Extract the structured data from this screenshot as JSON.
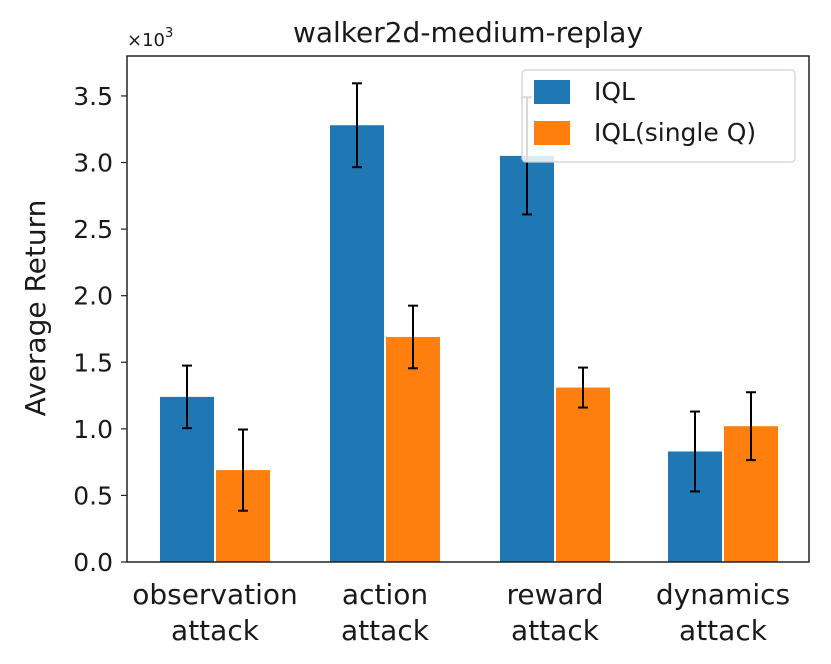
{
  "chart_data": {
    "type": "bar",
    "title": "walker2d-medium-replay",
    "xlabel": "",
    "ylabel": "Average Return",
    "y_multiplier": "×10",
    "y_multiplier_exp": "3",
    "ylim": [
      0,
      3.8
    ],
    "yticks": [
      0.0,
      0.5,
      1.0,
      1.5,
      2.0,
      2.5,
      3.0,
      3.5
    ],
    "ytick_labels": [
      "0.0",
      "0.5",
      "1.0",
      "1.5",
      "2.0",
      "2.5",
      "3.0",
      "3.5"
    ],
    "categories": [
      [
        "observation",
        "attack"
      ],
      [
        "action",
        "attack"
      ],
      [
        "reward",
        "attack"
      ],
      [
        "dynamics",
        "attack"
      ]
    ],
    "series": [
      {
        "name": "IQL",
        "color": "#1f77b4",
        "values": [
          1.24,
          3.28,
          3.05,
          0.83
        ],
        "errors": [
          0.235,
          0.315,
          0.44,
          0.3
        ]
      },
      {
        "name": "IQL(single Q)",
        "color": "#ff7f0e",
        "values": [
          0.69,
          1.69,
          1.31,
          1.02
        ],
        "errors": [
          0.305,
          0.235,
          0.15,
          0.255
        ]
      }
    ],
    "legend_position": "top-right",
    "grid": false
  }
}
